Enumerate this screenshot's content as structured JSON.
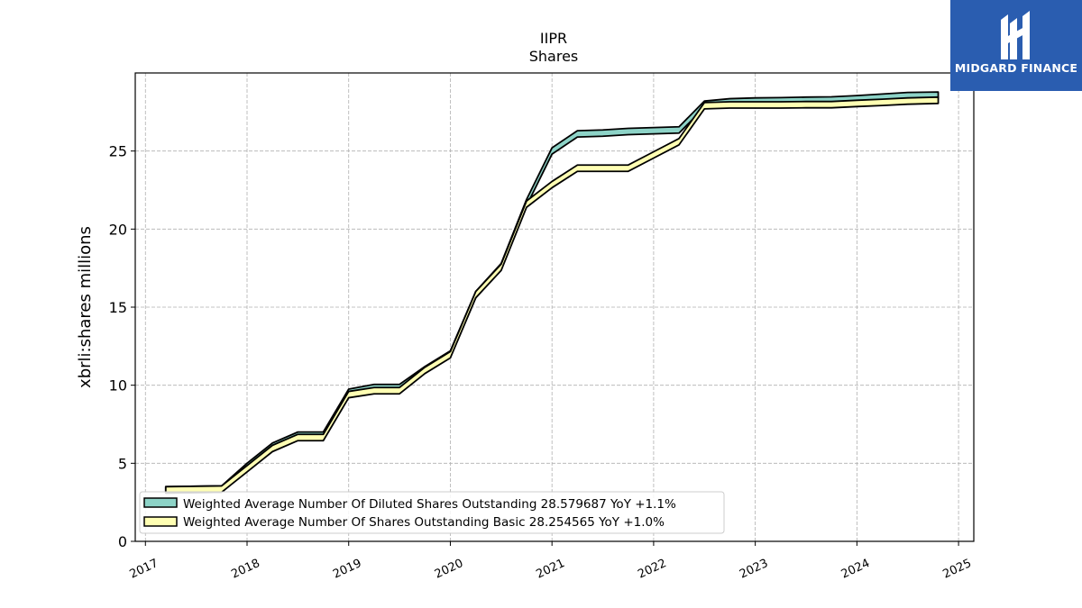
{
  "logo": {
    "text": "MIDGARD FINANCE",
    "bg_color": "#2a5db0"
  },
  "chart_data": {
    "type": "area",
    "title_line1": "IIPR",
    "title_line2": "Shares",
    "ylabel": "xbrli:shares millions",
    "xlabel": "",
    "ylim": [
      0,
      30
    ],
    "yticks": [
      0,
      5,
      10,
      15,
      20,
      25
    ],
    "xlim": [
      2016.9,
      2025.15
    ],
    "xticks": [
      2017,
      2018,
      2019,
      2020,
      2021,
      2022,
      2023,
      2024,
      2025
    ],
    "xtick_labels": [
      "2017",
      "2018",
      "2019",
      "2020",
      "2021",
      "2022",
      "2023",
      "2024",
      "2025"
    ],
    "grid": true,
    "legend_position": "lower-left",
    "series": [
      {
        "name": "Weighted Average Number Of Diluted Shares Outstanding",
        "legend_label": "Weighted Average Number Of Diluted Shares Outstanding  28.579687 YoY +1.1%",
        "color": "#8dd3c7",
        "x": [
          2017.2,
          2017.75,
          2018.0,
          2018.25,
          2018.5,
          2018.75,
          2019.0,
          2019.25,
          2019.5,
          2019.75,
          2020.0,
          2020.25,
          2020.5,
          2020.75,
          2021.0,
          2021.25,
          2021.5,
          2021.75,
          2022.0,
          2022.25,
          2022.5,
          2022.75,
          2023.0,
          2023.25,
          2023.5,
          2023.75,
          2024.0,
          2024.25,
          2024.5,
          2024.8
        ],
        "values": [
          3.3,
          3.35,
          4.8,
          6.1,
          6.8,
          6.8,
          9.55,
          9.85,
          9.85,
          11.0,
          12.0,
          15.8,
          17.6,
          21.7,
          25.0,
          26.1,
          26.15,
          26.25,
          26.3,
          26.35,
          28.0,
          28.15,
          28.2,
          28.22,
          28.25,
          28.27,
          28.35,
          28.45,
          28.55,
          28.58
        ]
      },
      {
        "name": "Weighted Average Number Of Shares Outstanding Basic",
        "legend_label": "Weighted Average Number Of Shares Outstanding Basic  28.254565 YoY +1.0%",
        "color": "#ffffb3",
        "x": [
          2017.2,
          2017.75,
          2018.0,
          2018.25,
          2018.5,
          2018.75,
          2019.0,
          2019.25,
          2019.5,
          2019.75,
          2020.0,
          2020.25,
          2020.5,
          2020.75,
          2021.0,
          2021.25,
          2021.5,
          2021.75,
          2022.0,
          2022.25,
          2022.5,
          2022.75,
          2023.0,
          2023.25,
          2023.5,
          2023.75,
          2024.0,
          2024.25,
          2024.5,
          2024.8
        ],
        "values": [
          3.3,
          3.35,
          4.65,
          5.95,
          6.65,
          6.65,
          9.4,
          9.65,
          9.65,
          10.95,
          11.95,
          15.8,
          17.55,
          21.6,
          22.85,
          23.9,
          23.9,
          23.9,
          24.75,
          25.6,
          27.9,
          27.95,
          27.95,
          27.95,
          27.97,
          27.97,
          28.05,
          28.12,
          28.2,
          28.25
        ]
      }
    ]
  }
}
